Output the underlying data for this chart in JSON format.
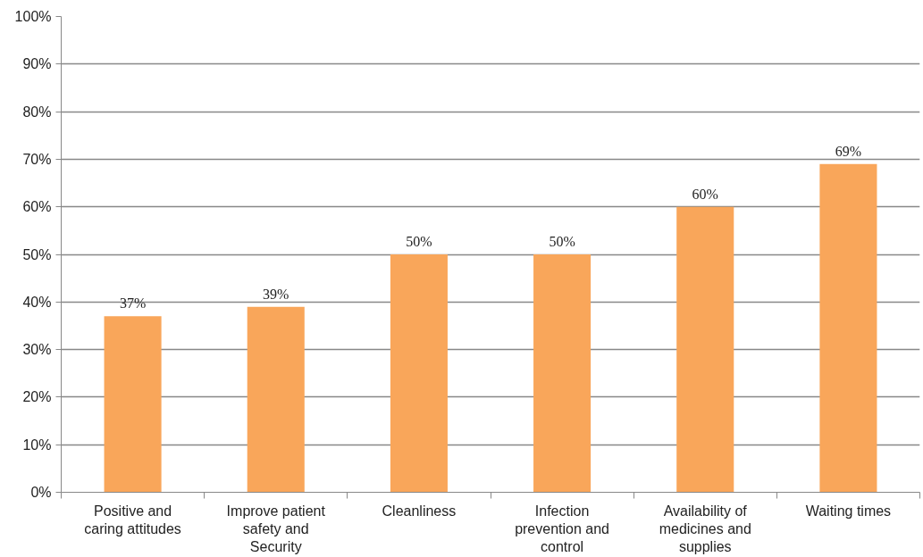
{
  "chart_data": {
    "type": "bar",
    "categories": [
      "Positive and\ncaring attitudes",
      "Improve patient\nsafety and\nSecurity",
      "Cleanliness",
      "Infection\nprevention and\ncontrol",
      "Availability of\nmedicines and\nsupplies",
      "Waiting times"
    ],
    "values": [
      37,
      39,
      50,
      50,
      60,
      69
    ],
    "value_labels": [
      "37%",
      "39%",
      "50%",
      "50%",
      "60%",
      "69%"
    ],
    "color": "#f9a65a",
    "ylim": [
      0,
      100
    ],
    "yticks": [
      {
        "value": 0,
        "label": "0%"
      },
      {
        "value": 10,
        "label": "10%"
      },
      {
        "value": 20,
        "label": "20%"
      },
      {
        "value": 30,
        "label": "30%"
      },
      {
        "value": 40,
        "label": "40%"
      },
      {
        "value": 50,
        "label": "50%"
      },
      {
        "value": 60,
        "label": "60%"
      },
      {
        "value": 70,
        "label": "70%"
      },
      {
        "value": 80,
        "label": "80%"
      },
      {
        "value": 90,
        "label": "90%"
      },
      {
        "value": 100,
        "label": "100%"
      }
    ],
    "grid": "y"
  }
}
